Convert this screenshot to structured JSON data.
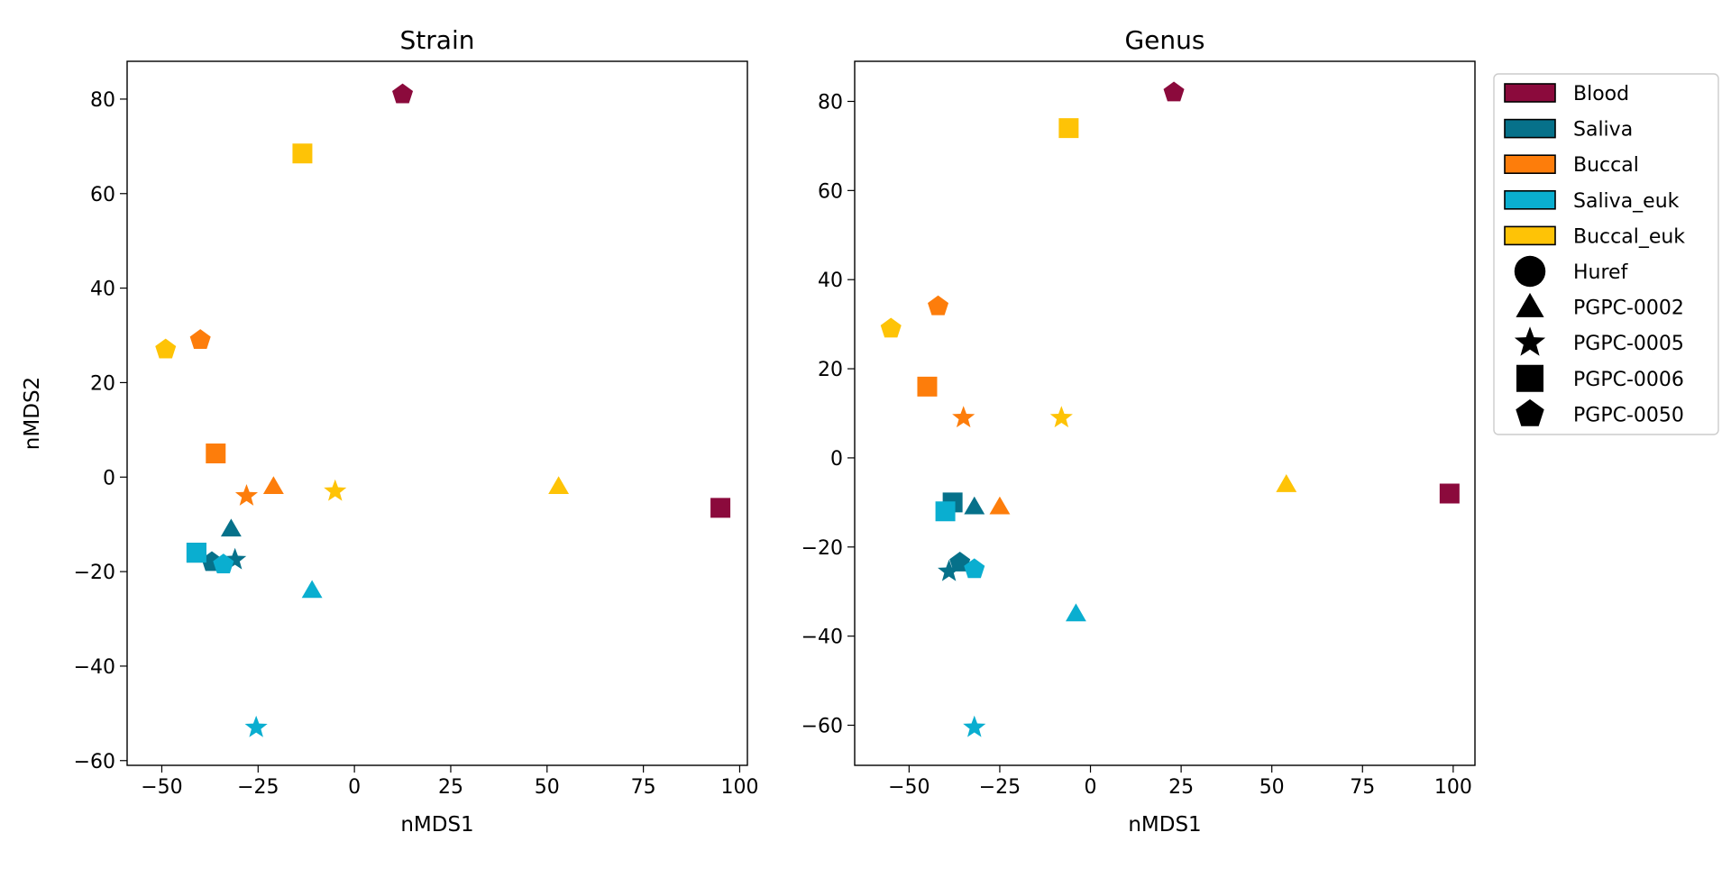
{
  "chart_data": [
    {
      "type": "scatter",
      "title": "Strain",
      "xlabel": "nMDS1",
      "ylabel": "nMDS2",
      "xlim": [
        -59,
        102
      ],
      "ylim": [
        -61,
        88
      ],
      "xticks": [
        -50,
        -25,
        0,
        25,
        50,
        75,
        100
      ],
      "yticks": [
        -60,
        -40,
        -20,
        0,
        20,
        40,
        60,
        80
      ],
      "grid": false,
      "points": [
        {
          "x": 12.5,
          "y": 81,
          "sample": "Blood",
          "subject": "PGPC-0050"
        },
        {
          "x": 95,
          "y": -6.5,
          "sample": "Blood",
          "subject": "PGPC-0006"
        },
        {
          "x": -13.5,
          "y": 68.5,
          "sample": "Buccal_euk",
          "subject": "PGPC-0006"
        },
        {
          "x": -49,
          "y": 27,
          "sample": "Buccal_euk",
          "subject": "PGPC-0050"
        },
        {
          "x": -5,
          "y": -3,
          "sample": "Buccal_euk",
          "subject": "PGPC-0005"
        },
        {
          "x": 53,
          "y": -2,
          "sample": "Buccal_euk",
          "subject": "PGPC-0002"
        },
        {
          "x": -40,
          "y": 29,
          "sample": "Buccal",
          "subject": "PGPC-0050"
        },
        {
          "x": -36,
          "y": 5,
          "sample": "Buccal",
          "subject": "PGPC-0006"
        },
        {
          "x": -28,
          "y": -4,
          "sample": "Buccal",
          "subject": "PGPC-0005"
        },
        {
          "x": -21,
          "y": -2,
          "sample": "Buccal",
          "subject": "PGPC-0002"
        },
        {
          "x": -32,
          "y": -11,
          "sample": "Saliva",
          "subject": "PGPC-0002"
        },
        {
          "x": -37,
          "y": -18,
          "sample": "Saliva",
          "subject": "PGPC-0050"
        },
        {
          "x": -31,
          "y": -17.5,
          "sample": "Saliva",
          "subject": "PGPC-0005"
        },
        {
          "x": -41,
          "y": -16,
          "sample": "Saliva",
          "subject": "PGPC-0006"
        },
        {
          "x": -41,
          "y": -16,
          "sample": "Saliva_euk",
          "subject": "PGPC-0006"
        },
        {
          "x": -34,
          "y": -18.5,
          "sample": "Saliva_euk",
          "subject": "PGPC-0050"
        },
        {
          "x": -11,
          "y": -24,
          "sample": "Saliva_euk",
          "subject": "PGPC-0002"
        },
        {
          "x": -25.5,
          "y": -53,
          "sample": "Saliva_euk",
          "subject": "PGPC-0005"
        }
      ]
    },
    {
      "type": "scatter",
      "title": "Genus",
      "xlabel": "nMDS1",
      "ylabel": "",
      "xlim": [
        -65,
        106
      ],
      "ylim": [
        -69,
        89
      ],
      "xticks": [
        -50,
        -25,
        0,
        25,
        50,
        75,
        100
      ],
      "yticks": [
        -60,
        -40,
        -20,
        0,
        20,
        40,
        60,
        80
      ],
      "grid": false,
      "points": [
        {
          "x": 23,
          "y": 82,
          "sample": "Blood",
          "subject": "PGPC-0050"
        },
        {
          "x": 99,
          "y": -8,
          "sample": "Blood",
          "subject": "PGPC-0006"
        },
        {
          "x": -6,
          "y": 74,
          "sample": "Buccal_euk",
          "subject": "PGPC-0006"
        },
        {
          "x": -55,
          "y": 29,
          "sample": "Buccal_euk",
          "subject": "PGPC-0050"
        },
        {
          "x": -8,
          "y": 9,
          "sample": "Buccal_euk",
          "subject": "PGPC-0005"
        },
        {
          "x": 54,
          "y": -6,
          "sample": "Buccal_euk",
          "subject": "PGPC-0002"
        },
        {
          "x": -42,
          "y": 34,
          "sample": "Buccal",
          "subject": "PGPC-0050"
        },
        {
          "x": -45,
          "y": 16,
          "sample": "Buccal",
          "subject": "PGPC-0006"
        },
        {
          "x": -35,
          "y": 9,
          "sample": "Buccal",
          "subject": "PGPC-0005"
        },
        {
          "x": -25,
          "y": -11,
          "sample": "Buccal",
          "subject": "PGPC-0002"
        },
        {
          "x": -38,
          "y": -10,
          "sample": "Saliva",
          "subject": "PGPC-0006"
        },
        {
          "x": -32,
          "y": -11,
          "sample": "Saliva",
          "subject": "PGPC-0002"
        },
        {
          "x": -36,
          "y": -23.5,
          "sample": "Saliva",
          "subject": "PGPC-0050"
        },
        {
          "x": -39,
          "y": -25.5,
          "sample": "Saliva",
          "subject": "PGPC-0005"
        },
        {
          "x": -40,
          "y": -12,
          "sample": "Saliva_euk",
          "subject": "PGPC-0006"
        },
        {
          "x": -32,
          "y": -25,
          "sample": "Saliva_euk",
          "subject": "PGPC-0050"
        },
        {
          "x": -4,
          "y": -35,
          "sample": "Saliva_euk",
          "subject": "PGPC-0002"
        },
        {
          "x": -32,
          "y": -60.5,
          "sample": "Saliva_euk",
          "subject": "PGPC-0005"
        }
      ]
    }
  ],
  "legend": {
    "placement": "right, outside plot",
    "colors": [
      {
        "label": "Blood",
        "color": "#8b0a3c"
      },
      {
        "label": "Saliva",
        "color": "#06718a"
      },
      {
        "label": "Buccal",
        "color": "#fd7d0b"
      },
      {
        "label": "Saliva_euk",
        "color": "#0aaed0"
      },
      {
        "label": "Buccal_euk",
        "color": "#fec306"
      }
    ],
    "markers": [
      {
        "label": "Huref",
        "shape": "circle"
      },
      {
        "label": "PGPC-0002",
        "shape": "triangle"
      },
      {
        "label": "PGPC-0005",
        "shape": "star"
      },
      {
        "label": "PGPC-0006",
        "shape": "square"
      },
      {
        "label": "PGPC-0050",
        "shape": "pentagon"
      }
    ]
  }
}
